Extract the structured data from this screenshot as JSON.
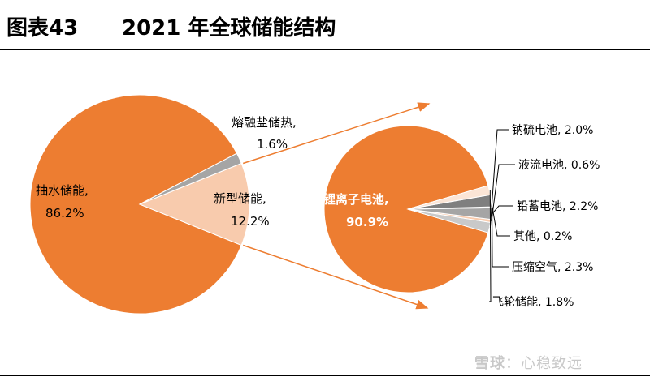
{
  "figure": {
    "label": "图表43",
    "title": "2021 年全球储能结构"
  },
  "watermark": {
    "logo": "雪球",
    "text": "：心稳致远"
  },
  "colors": {
    "orange": "#ed7d31",
    "peach": "#f8cbad",
    "gray": "#a5a5a5",
    "light_gray": "#c9c9c9",
    "dark_gray": "#7f7f7f"
  },
  "chart_data": [
    {
      "type": "pie",
      "title": "",
      "slices": [
        {
          "label": "抽水储能,",
          "value_label": "86.2%",
          "value": 86.2,
          "color": "#ed7d31"
        },
        {
          "label": "新型储能,",
          "value_label": "12.2%",
          "value": 12.2,
          "color": "#f8cbad"
        },
        {
          "label": "熔融盐储热,",
          "value_label": "1.6%",
          "value": 1.6,
          "color": "#a5a5a5"
        }
      ]
    },
    {
      "type": "pie",
      "title": "",
      "slices": [
        {
          "label": "锂离子电池,",
          "value_label": "90.9%",
          "value": 90.9,
          "color": "#ed7d31"
        },
        {
          "label": "钠硫电池, 2.0%",
          "value": 2.0,
          "color": "#c9c9c9"
        },
        {
          "label": "液流电池, 0.6%",
          "value": 0.6,
          "color": "#f8cbad"
        },
        {
          "label": "铅蓄电池, 2.2%",
          "value": 2.2,
          "color": "#a5a5a5"
        },
        {
          "label": "其他, 0.2%",
          "value": 0.2,
          "color": "#ffffff"
        },
        {
          "label": "压缩空气, 2.3%",
          "value": 2.3,
          "color": "#7f7f7f"
        },
        {
          "label": "飞轮储能, 1.8%",
          "value": 1.8,
          "color": "#fbe5d6"
        }
      ]
    }
  ]
}
